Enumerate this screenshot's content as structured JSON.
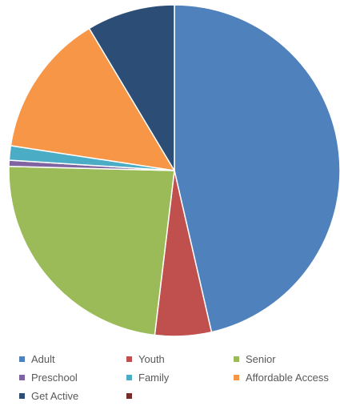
{
  "chart_data": {
    "type": "pie",
    "title": "",
    "start_angle_deg": 0,
    "direction": "clockwise",
    "slices": [
      {
        "label": "Adult",
        "value": 46.4,
        "color": "#4f81bd"
      },
      {
        "label": "Youth",
        "value": 5.5,
        "color": "#c0504d"
      },
      {
        "label": "Senior",
        "value": 23.5,
        "color": "#9bbb59"
      },
      {
        "label": "Preschool",
        "value": 0.6,
        "color": "#8064a2"
      },
      {
        "label": "Family",
        "value": 1.4,
        "color": "#4bacc6"
      },
      {
        "label": "Affordable Access",
        "value": 14.0,
        "color": "#f79646"
      },
      {
        "label": "Get Active",
        "value": 8.6,
        "color": "#2c4d75"
      },
      {
        "label": "",
        "value": 0,
        "color": "#772c2a"
      }
    ],
    "legend_position": "bottom"
  }
}
